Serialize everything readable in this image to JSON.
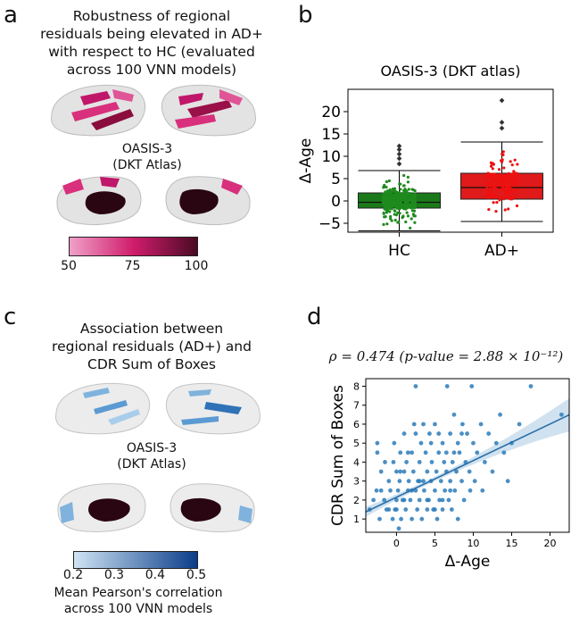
{
  "panels": {
    "a": {
      "label": "a",
      "title_lines": [
        "Robustness of regional",
        "residuals being elevated in AD+",
        "with respect to HC (evaluated",
        "across 100 VNN models)"
      ],
      "dataset_lines": [
        "OASIS-3",
        "(DKT Atlas)"
      ],
      "colorbar": {
        "ticks": [
          "50",
          "75",
          "100"
        ],
        "color_low": "#f0a0c8",
        "color_mid": "#d01d6c",
        "color_high": "#4a0a24"
      }
    },
    "b": {
      "label": "b"
    },
    "c": {
      "label": "c",
      "title_lines": [
        "Association between",
        "regional residuals (AD+) and",
        "CDR Sum of Boxes"
      ],
      "dataset_lines": [
        "OASIS-3",
        "(DKT Atlas)"
      ],
      "colorbar": {
        "ticks": [
          "0.2",
          "0.3",
          "0.4",
          "0.5"
        ],
        "color_low": "#cfe4f4",
        "color_high": "#0b3d8a"
      },
      "caption_lines": [
        "Mean Pearson's correlation",
        "across 100 VNN models"
      ]
    },
    "d": {
      "label": "d",
      "stat_line": "ρ = 0.474 (p-value = 2.88 × 10⁻¹²)"
    }
  },
  "chart_data": [
    {
      "type": "box",
      "title": "OASIS-3 (DKT atlas)",
      "xlabel": "",
      "ylabel": "Δ-Age",
      "ylim": [
        -7,
        25
      ],
      "yticks": [
        -5,
        0,
        5,
        10,
        15,
        20
      ],
      "categories": [
        "HC",
        "AD+"
      ],
      "boxes": [
        {
          "name": "HC",
          "color": "#1a7a1a",
          "point_color": "#1e8a1e",
          "whisker_low": -6.7,
          "q1": -1.6,
          "median": -0.3,
          "q3": 1.8,
          "whisker_high": 6.8,
          "outliers": [
            8.3,
            9.5,
            10.5,
            11.5,
            12.3
          ]
        },
        {
          "name": "AD+",
          "color": "#e01a1a",
          "point_color": "#ee1111",
          "whisker_low": -4.6,
          "q1": 0.4,
          "median": 3.0,
          "q3": 6.2,
          "whisker_high": 13.2,
          "outliers": [
            16.3,
            17.6,
            22.5
          ]
        }
      ]
    },
    {
      "type": "scatter",
      "title": "",
      "xlabel": "Δ-Age",
      "ylabel": "CDR Sum of Boxes",
      "xlim": [
        -4,
        22.5
      ],
      "ylim": [
        0.3,
        8.4
      ],
      "xticks": [
        0,
        5,
        10,
        15,
        20
      ],
      "yticks": [
        1,
        2,
        3,
        4,
        5,
        6,
        7,
        8
      ],
      "point_color": "#2b7bba",
      "regression": {
        "slope": 0.193,
        "intercept": 2.15
      },
      "points": [
        [
          -3.5,
          1.5
        ],
        [
          -3,
          2
        ],
        [
          -2.6,
          2.5
        ],
        [
          -2.5,
          5
        ],
        [
          -2.5,
          4.5
        ],
        [
          -2.2,
          1
        ],
        [
          -2,
          3.5
        ],
        [
          -1.6,
          2
        ],
        [
          -1.5,
          4
        ],
        [
          -1.3,
          1.5
        ],
        [
          -1,
          3
        ],
        [
          -0.8,
          2.5
        ],
        [
          -0.5,
          1
        ],
        [
          -0.4,
          4
        ],
        [
          -0.3,
          5
        ],
        [
          -0.2,
          1.5
        ],
        [
          0,
          2
        ],
        [
          0,
          3.5
        ],
        [
          0.2,
          2.5
        ],
        [
          0.3,
          0.5
        ],
        [
          0.4,
          3
        ],
        [
          0.5,
          4.5
        ],
        [
          0.6,
          1
        ],
        [
          0.8,
          2
        ],
        [
          1,
          3.5
        ],
        [
          1,
          5.5
        ],
        [
          1.2,
          1.5
        ],
        [
          1.3,
          4
        ],
        [
          1.5,
          2.5
        ],
        [
          1.6,
          3
        ],
        [
          1.8,
          2
        ],
        [
          2,
          1
        ],
        [
          2,
          4.5
        ],
        [
          2.2,
          3.5
        ],
        [
          2.3,
          6
        ],
        [
          2.5,
          2.5
        ],
        [
          2.5,
          8
        ],
        [
          2.7,
          1.5
        ],
        [
          2.8,
          3
        ],
        [
          3,
          2
        ],
        [
          3,
          4
        ],
        [
          3.2,
          5
        ],
        [
          3.3,
          1
        ],
        [
          3.5,
          3
        ],
        [
          3.6,
          2.5
        ],
        [
          3.8,
          4.5
        ],
        [
          4,
          1.5
        ],
        [
          4,
          3.5
        ],
        [
          4.2,
          2
        ],
        [
          4.3,
          5.5
        ],
        [
          4.5,
          3
        ],
        [
          4.6,
          4
        ],
        [
          4.8,
          1.5
        ],
        [
          5,
          2.5
        ],
        [
          5,
          6
        ],
        [
          5.2,
          3.5
        ],
        [
          5.3,
          1
        ],
        [
          5.5,
          4.5
        ],
        [
          5.6,
          2
        ],
        [
          5.8,
          3
        ],
        [
          6,
          5
        ],
        [
          6,
          1.5
        ],
        [
          6.2,
          4
        ],
        [
          6.3,
          2.5
        ],
        [
          6.5,
          3.5
        ],
        [
          6.6,
          8
        ],
        [
          6.8,
          2
        ],
        [
          7,
          5.5
        ],
        [
          7,
          3
        ],
        [
          7.2,
          1.5
        ],
        [
          7.3,
          4
        ],
        [
          7.5,
          6.5
        ],
        [
          7.6,
          2.5
        ],
        [
          7.8,
          3.5
        ],
        [
          8,
          5
        ],
        [
          8,
          1
        ],
        [
          8.2,
          4.5
        ],
        [
          8.5,
          3
        ],
        [
          8.6,
          6
        ],
        [
          8.8,
          2
        ],
        [
          9,
          4
        ],
        [
          9.2,
          5.5
        ],
        [
          9.5,
          3.5
        ],
        [
          9.6,
          2.5
        ],
        [
          9.8,
          8
        ],
        [
          10,
          5
        ],
        [
          10.2,
          3
        ],
        [
          10.5,
          4.5
        ],
        [
          11,
          6
        ],
        [
          11.2,
          2.5
        ],
        [
          11.5,
          4
        ],
        [
          12,
          5.5
        ],
        [
          12.5,
          3.5
        ],
        [
          13,
          5
        ],
        [
          13.5,
          6.5
        ],
        [
          14,
          4.5
        ],
        [
          14.5,
          3
        ],
        [
          15,
          5
        ],
        [
          16,
          6
        ],
        [
          17.5,
          8
        ],
        [
          21.5,
          6.5
        ],
        [
          0,
          1.5
        ],
        [
          1,
          2
        ],
        [
          2,
          2.5
        ],
        [
          3,
          3
        ],
        [
          4,
          2
        ],
        [
          5,
          1.5
        ],
        [
          6,
          2
        ],
        [
          7,
          2.5
        ],
        [
          -1,
          1.5
        ],
        [
          -2,
          2.5
        ],
        [
          0.5,
          3.5
        ],
        [
          1.5,
          4.5
        ],
        [
          2.5,
          5.5
        ],
        [
          3.5,
          6
        ],
        [
          4.5,
          5
        ],
        [
          5.5,
          5.5
        ],
        [
          6.5,
          4.5
        ],
        [
          7.5,
          4.5
        ],
        [
          8.5,
          5.5
        ]
      ]
    }
  ]
}
